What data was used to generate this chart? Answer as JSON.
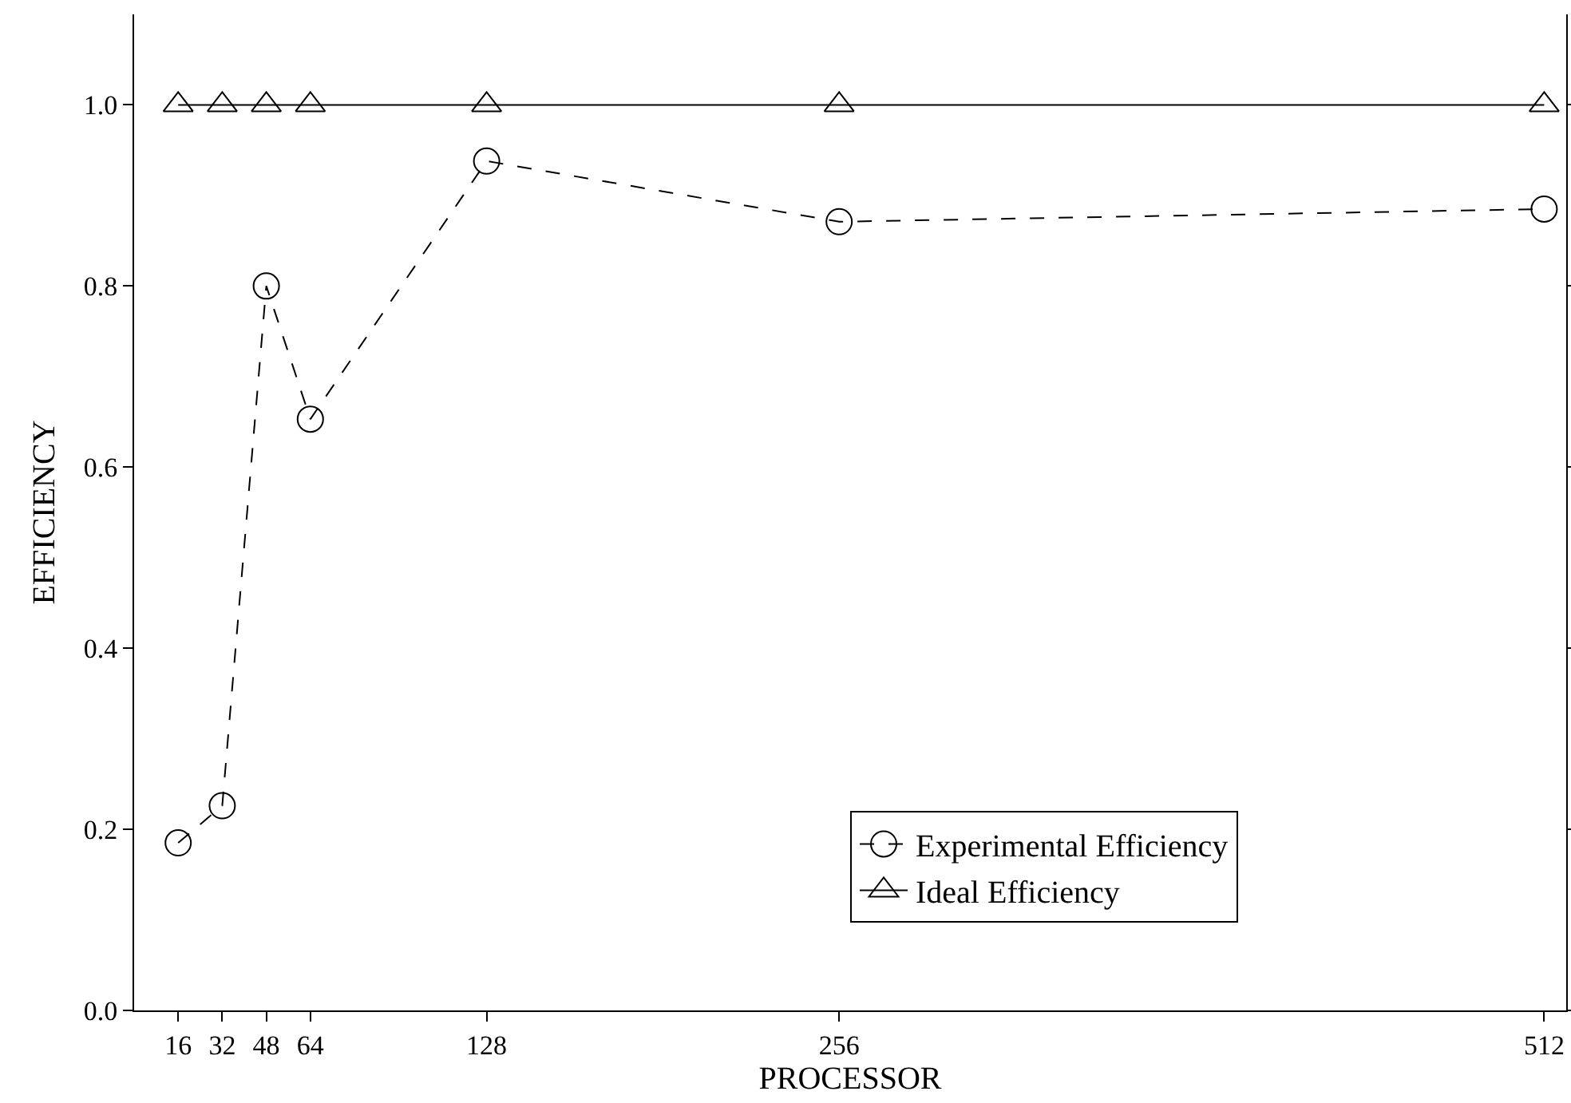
{
  "chart_data": {
    "type": "line",
    "xlabel": "PROCESSOR",
    "ylabel": "EFFICIENCY",
    "x": [
      16,
      32,
      48,
      64,
      128,
      256,
      512
    ],
    "xlim": [
      0,
      520
    ],
    "xticks": [
      16,
      32,
      48,
      64,
      128,
      256,
      512
    ],
    "ylim": [
      0,
      1.1
    ],
    "yticks": [
      {
        "value": 0,
        "label": "0.0"
      },
      0.2,
      0.4,
      0.6,
      0.8,
      {
        "value": 1,
        "label": "1.0"
      }
    ],
    "grid": false,
    "legend": "bottom",
    "series": [
      {
        "name": "Experimental Efficiency",
        "color": "#000000",
        "marker": "circle",
        "line_style": "dashed",
        "values": [
          0.185,
          0.226,
          0.8,
          0.653,
          0.938,
          0.871,
          0.885
        ]
      },
      {
        "name": "Ideal Efficiency",
        "color": "#000000",
        "marker": "triangle",
        "line_style": "solid",
        "values": [
          1,
          1,
          1,
          1,
          1,
          1,
          1
        ]
      }
    ]
  }
}
